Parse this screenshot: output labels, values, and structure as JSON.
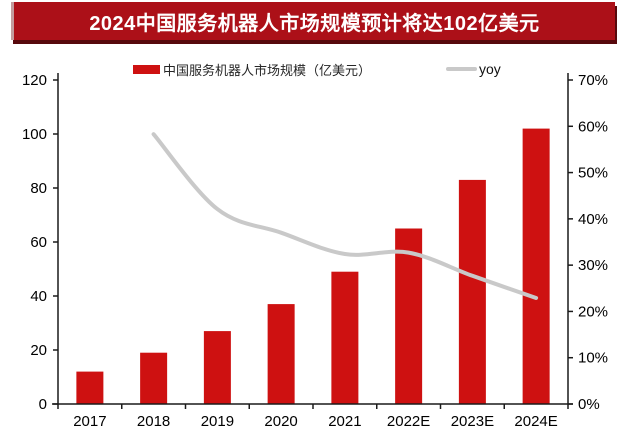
{
  "banner": {
    "title": "2024中国服务机器人市场规模预计将达102亿美元"
  },
  "legend": {
    "items": [
      {
        "label": "中国服务机器人市场规模（亿美元）",
        "swatch": "bar-swatch"
      },
      {
        "label": "yoy",
        "swatch": "line-swatch"
      }
    ]
  },
  "chart_data": {
    "type": "bar+line",
    "title": "2024中国服务机器人市场规模预计将达102亿美元",
    "categories": [
      "2017",
      "2018",
      "2019",
      "2020",
      "2021",
      "2022E",
      "2023E",
      "2024E"
    ],
    "series": [
      {
        "name": "中国服务机器人市场规模（亿美元）",
        "type": "bar",
        "axis": "left",
        "values": [
          12,
          19,
          27,
          37,
          49,
          65,
          83,
          102
        ]
      },
      {
        "name": "yoy",
        "type": "line",
        "axis": "right",
        "values": [
          null,
          58.3,
          42.1,
          37.0,
          32.4,
          32.7,
          27.7,
          22.9
        ]
      }
    ],
    "left_axis": {
      "min": 0,
      "max": 120,
      "step": 20,
      "ticks": [
        "0",
        "20",
        "40",
        "60",
        "80",
        "100",
        "120"
      ]
    },
    "right_axis": {
      "min": 0,
      "max": 70,
      "step": 10,
      "ticks": [
        "0%",
        "10%",
        "20%",
        "30%",
        "40%",
        "50%",
        "60%",
        "70%"
      ]
    },
    "grid": "off",
    "legend_position": "top",
    "colors": {
      "bar": "#CE1111",
      "line": "#C9C9C9",
      "axis": "#1a1a1a",
      "banner_bg": "#AC1018",
      "banner_text": "#FFFFFF"
    }
  }
}
